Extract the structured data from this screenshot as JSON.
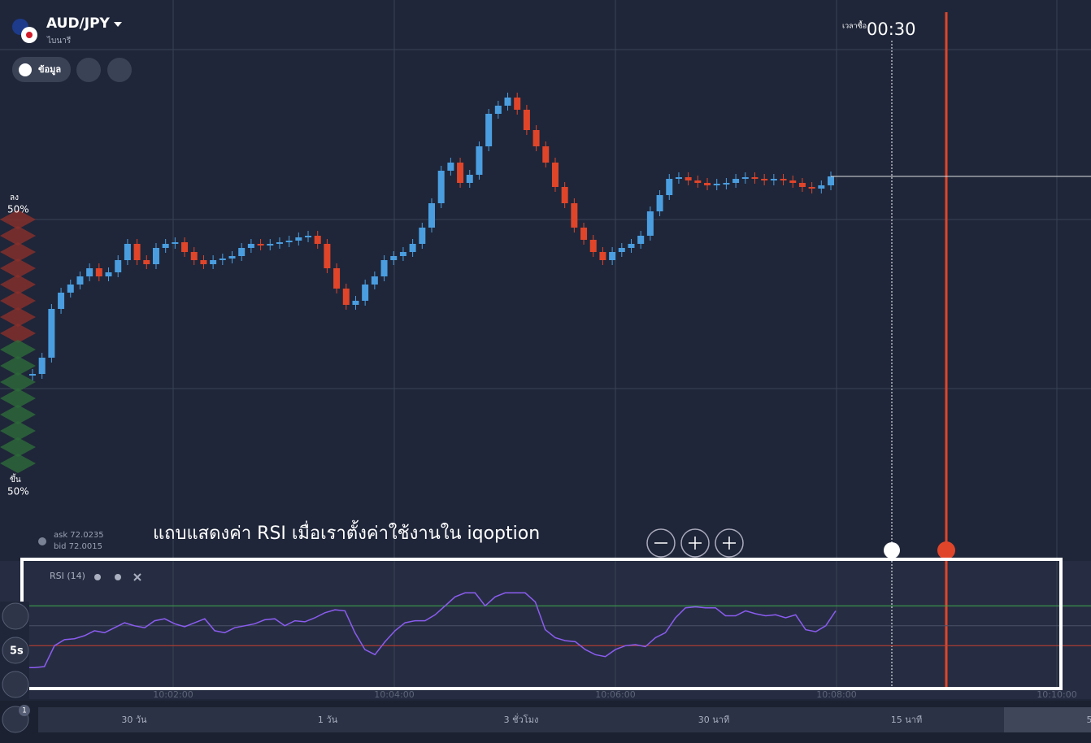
{
  "header": {
    "asset": "AUD/JPY",
    "asset_type": "ไบนารี",
    "info_button": "ข้อมูล"
  },
  "timer": {
    "label": "เวลาซื้อ",
    "value": "00:30"
  },
  "sentiment": {
    "down_label": "ลง",
    "down_pct": "50%",
    "up_label": "ขึ้น",
    "up_pct": "50%"
  },
  "quote": {
    "ask": "ask 72.0235",
    "bid": "bid 72.0015"
  },
  "annotation": "แถบแสดงค่า RSI เมื่อเราตั้งค่าใช้งานใน iqoption",
  "price_chart": {
    "type": "candlestick",
    "ylim": [
      0,
      64
    ],
    "up_color": "#4a9ee0",
    "down_color": "#e0452a",
    "closes": [
      18,
      20,
      26,
      28,
      29,
      30,
      31,
      30,
      30.5,
      32,
      34,
      32,
      31.5,
      33.5,
      34,
      34.2,
      33,
      32,
      31.5,
      32,
      32.2,
      32.5,
      33.5,
      34,
      33.8,
      34,
      34.2,
      34.4,
      34.8,
      35,
      34,
      31,
      28.5,
      26.5,
      27,
      29,
      30,
      32,
      32.5,
      33,
      34,
      36,
      39,
      43,
      44,
      41.5,
      42.5,
      46,
      50,
      51,
      52,
      50.5,
      48,
      46,
      44,
      41,
      39,
      36,
      34.5,
      33,
      32,
      33,
      33.5,
      34,
      35,
      38,
      40,
      42,
      42.2,
      41.8,
      41.5,
      41.2,
      41.4,
      41.5,
      42,
      42.2,
      42,
      41.8,
      42,
      41.8,
      41.5,
      41,
      40.8,
      41.2,
      42.3
    ]
  },
  "rsi": {
    "type": "line",
    "title": "RSI (14)",
    "color": "#8b5cf0",
    "ylim": [
      0,
      100
    ],
    "upper": 70,
    "lower": 30,
    "values": [
      8,
      8,
      9,
      30,
      36,
      37,
      40,
      45,
      43,
      48,
      53,
      50,
      48,
      55,
      57,
      52,
      49,
      53,
      57,
      45,
      43,
      48,
      50,
      52,
      56,
      57,
      50,
      55,
      54,
      58,
      63,
      66,
      65,
      43,
      26,
      21,
      34,
      45,
      53,
      55,
      55,
      61,
      70,
      79,
      83,
      83,
      70,
      79,
      83,
      83,
      83,
      74,
      46,
      38,
      35,
      34,
      26,
      21,
      19,
      26,
      30,
      31,
      29,
      38,
      43,
      58,
      68,
      69,
      68,
      68,
      60,
      60,
      65,
      62,
      60,
      61,
      58,
      61,
      46,
      44,
      50,
      65
    ]
  },
  "time_axis": [
    "10:02:00",
    "10:04:00",
    "10:06:00",
    "10:08:00",
    "10:10:00"
  ],
  "timeframes": [
    "30 วัน",
    "1 วัน",
    "3 ชั่วโมง",
    "30 นาที",
    "15 นาที",
    "5"
  ],
  "side": {
    "interval": "5s",
    "indicator_count": "1"
  }
}
